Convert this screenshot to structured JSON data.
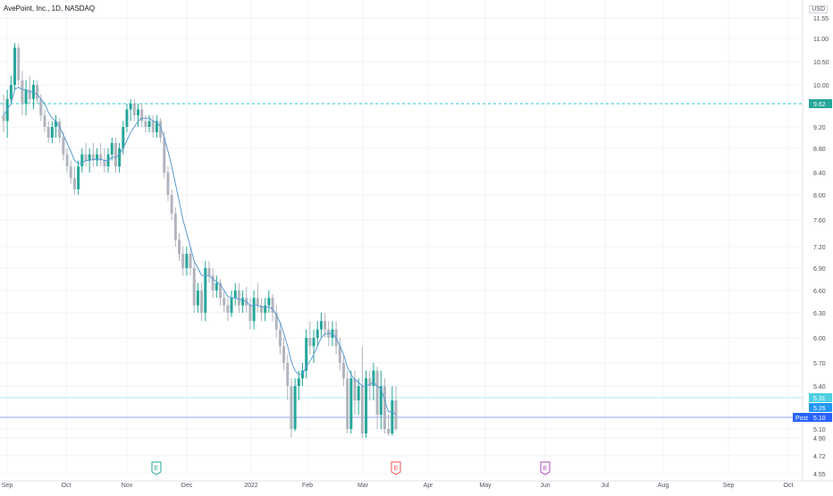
{
  "header": {
    "symbol_title": "AvePoint, Inc., 1D, NASDAQ",
    "currency": "USD"
  },
  "colors": {
    "up": "#26a69a",
    "down": "#b2b5be",
    "ma": "#5b9bd5",
    "dashed_line": "#26c6da",
    "price_tag_current": "#26a69a",
    "price_tag_close": "#2196f3",
    "post_tag": "#2962ff",
    "earnings_up": "#26a69a",
    "earnings_down": "#ef5350",
    "earnings_future": "#ab47bc"
  },
  "chart_data": {
    "type": "candlestick",
    "title": "AvePoint, Inc., 1D, NASDAQ",
    "ylabel": "USD",
    "ylim": [
      4.55,
      11.55
    ],
    "grid": true,
    "y_ticks": [
      "11.55",
      "11.00",
      "10.50",
      "10.00",
      "9.60",
      "9.20",
      "8.80",
      "8.40",
      "8.00",
      "7.60",
      "7.20",
      "6.90",
      "6.60",
      "6.30",
      "6.00",
      "5.70",
      "5.40",
      "5.10",
      "4.90",
      "4.72",
      "4.55"
    ],
    "x_ticks": [
      "Sep",
      "Oct",
      "Nov",
      "Dec",
      "2022",
      "Feb",
      "Mar",
      "Apr",
      "May",
      "Jun",
      "Jul",
      "Aug",
      "Sep",
      "Oct"
    ],
    "series": [
      {
        "type": "candlestick",
        "ohlc": [
          [
            9.4,
            9.8,
            9.1,
            9.3
          ],
          [
            9.3,
            9.9,
            9.0,
            9.7
          ],
          [
            9.7,
            10.2,
            9.6,
            10.0
          ],
          [
            10.0,
            10.9,
            9.9,
            10.8
          ],
          [
            10.8,
            10.9,
            10.0,
            10.1
          ],
          [
            10.1,
            10.3,
            9.4,
            9.6
          ],
          [
            9.6,
            10.1,
            9.4,
            9.9
          ],
          [
            9.9,
            10.2,
            9.6,
            9.7
          ],
          [
            9.7,
            10.1,
            9.5,
            10.0
          ],
          [
            10.0,
            10.1,
            9.6,
            9.7
          ],
          [
            9.7,
            9.8,
            9.3,
            9.4
          ],
          [
            9.4,
            9.5,
            9.1,
            9.2
          ],
          [
            9.2,
            9.3,
            8.9,
            9.0
          ],
          [
            9.0,
            9.3,
            8.9,
            9.2
          ],
          [
            9.2,
            9.4,
            9.0,
            9.3
          ],
          [
            9.3,
            9.35,
            8.9,
            9.0
          ],
          [
            9.0,
            9.1,
            8.6,
            8.7
          ],
          [
            8.7,
            8.8,
            8.4,
            8.5
          ],
          [
            8.5,
            8.6,
            8.2,
            8.3
          ],
          [
            8.3,
            8.5,
            8.0,
            8.1
          ],
          [
            8.1,
            8.6,
            8.0,
            8.5
          ],
          [
            8.5,
            8.8,
            8.4,
            8.7
          ],
          [
            8.7,
            8.9,
            8.5,
            8.6
          ],
          [
            8.6,
            8.8,
            8.4,
            8.7
          ],
          [
            8.7,
            8.9,
            8.5,
            8.6
          ],
          [
            8.6,
            8.8,
            8.5,
            8.7
          ],
          [
            8.7,
            8.9,
            8.5,
            8.6
          ],
          [
            8.6,
            8.8,
            8.4,
            8.5
          ],
          [
            8.5,
            8.8,
            8.4,
            8.7
          ],
          [
            8.7,
            9.0,
            8.6,
            8.9
          ],
          [
            8.9,
            9.0,
            8.4,
            8.5
          ],
          [
            8.5,
            8.9,
            8.4,
            8.8
          ],
          [
            8.8,
            9.3,
            8.7,
            9.2
          ],
          [
            9.2,
            9.6,
            9.1,
            9.5
          ],
          [
            9.5,
            9.7,
            9.3,
            9.6
          ],
          [
            9.6,
            9.7,
            9.3,
            9.4
          ],
          [
            9.4,
            9.6,
            9.2,
            9.5
          ],
          [
            9.5,
            9.6,
            9.2,
            9.3
          ],
          [
            9.3,
            9.4,
            9.1,
            9.2
          ],
          [
            9.2,
            9.4,
            9.1,
            9.3
          ],
          [
            9.3,
            9.4,
            9.0,
            9.1
          ],
          [
            9.1,
            9.4,
            9.0,
            9.3
          ],
          [
            9.3,
            9.35,
            8.9,
            9.0
          ],
          [
            9.0,
            9.1,
            8.3,
            8.4
          ],
          [
            8.4,
            8.5,
            7.9,
            8.0
          ],
          [
            8.0,
            8.1,
            7.6,
            7.7
          ],
          [
            7.7,
            7.8,
            7.2,
            7.3
          ],
          [
            7.3,
            7.4,
            7.0,
            7.1
          ],
          [
            7.1,
            7.2,
            6.8,
            6.9
          ],
          [
            6.9,
            7.2,
            6.8,
            7.1
          ],
          [
            7.1,
            7.2,
            6.8,
            6.9
          ],
          [
            6.9,
            7.0,
            6.3,
            6.4
          ],
          [
            6.4,
            6.7,
            6.3,
            6.6
          ],
          [
            6.6,
            6.7,
            6.2,
            6.3
          ],
          [
            6.3,
            7.0,
            6.2,
            6.9
          ],
          [
            6.9,
            7.0,
            6.7,
            6.8
          ],
          [
            6.8,
            6.9,
            6.5,
            6.6
          ],
          [
            6.6,
            6.8,
            6.5,
            6.7
          ],
          [
            6.7,
            6.75,
            6.4,
            6.5
          ],
          [
            6.5,
            6.6,
            6.3,
            6.4
          ],
          [
            6.4,
            6.5,
            6.2,
            6.3
          ],
          [
            6.3,
            6.6,
            6.25,
            6.5
          ],
          [
            6.5,
            6.7,
            6.4,
            6.6
          ],
          [
            6.6,
            6.7,
            6.3,
            6.4
          ],
          [
            6.4,
            6.6,
            6.3,
            6.5
          ],
          [
            6.5,
            6.65,
            6.3,
            6.4
          ],
          [
            6.4,
            6.5,
            6.1,
            6.2
          ],
          [
            6.2,
            6.6,
            6.1,
            6.5
          ],
          [
            6.5,
            6.7,
            6.3,
            6.4
          ],
          [
            6.4,
            6.5,
            6.2,
            6.3
          ],
          [
            6.3,
            6.5,
            6.2,
            6.4
          ],
          [
            6.4,
            6.6,
            6.3,
            6.5
          ],
          [
            6.5,
            6.55,
            6.2,
            6.3
          ],
          [
            6.3,
            6.4,
            6.0,
            6.1
          ],
          [
            6.1,
            6.2,
            5.8,
            5.9
          ],
          [
            5.9,
            6.0,
            5.6,
            5.7
          ],
          [
            5.7,
            5.8,
            5.3,
            5.4
          ],
          [
            5.4,
            5.5,
            4.9,
            5.1
          ],
          [
            5.1,
            5.5,
            5.05,
            5.4
          ],
          [
            5.4,
            5.6,
            5.3,
            5.5
          ],
          [
            5.5,
            5.7,
            5.4,
            5.6
          ],
          [
            5.6,
            6.1,
            5.5,
            6.0
          ],
          [
            6.0,
            6.2,
            5.8,
            5.9
          ],
          [
            5.9,
            6.1,
            5.7,
            6.0
          ],
          [
            6.0,
            6.2,
            5.9,
            6.1
          ],
          [
            6.1,
            6.3,
            6.0,
            6.2
          ],
          [
            6.2,
            6.3,
            6.0,
            6.1
          ],
          [
            6.1,
            6.2,
            5.9,
            6.0
          ],
          [
            6.0,
            6.2,
            5.9,
            6.1
          ],
          [
            6.1,
            6.2,
            5.8,
            5.9
          ],
          [
            5.9,
            6.0,
            5.6,
            5.7
          ],
          [
            5.7,
            5.8,
            5.4,
            5.5
          ],
          [
            5.5,
            5.6,
            5.0,
            5.1
          ],
          [
            5.1,
            5.6,
            5.0,
            5.5
          ],
          [
            5.5,
            5.6,
            5.2,
            5.3
          ],
          [
            5.3,
            5.5,
            5.2,
            5.4
          ],
          [
            5.4,
            5.9,
            4.9,
            5.0
          ],
          [
            5.0,
            5.6,
            4.9,
            5.5
          ],
          [
            5.5,
            5.6,
            5.3,
            5.4
          ],
          [
            5.4,
            5.7,
            5.3,
            5.6
          ],
          [
            5.6,
            5.65,
            5.1,
            5.2
          ],
          [
            5.2,
            5.6,
            5.1,
            5.4
          ],
          [
            5.4,
            5.5,
            5.0,
            5.1
          ],
          [
            5.1,
            5.2,
            4.95,
            5.0
          ],
          [
            5.0,
            5.4,
            4.95,
            5.3
          ],
          [
            5.3,
            5.4,
            5.05,
            5.1
          ]
        ]
      },
      {
        "name": "",
        "type": "line",
        "values": [
          9.4,
          9.5,
          9.6,
          9.9,
          9.95,
          9.9,
          9.9,
          9.85,
          9.85,
          9.8,
          9.7,
          9.6,
          9.45,
          9.35,
          9.3,
          9.2,
          9.05,
          8.9,
          8.75,
          8.6,
          8.55,
          8.55,
          8.6,
          8.6,
          8.62,
          8.62,
          8.62,
          8.6,
          8.6,
          8.65,
          8.65,
          8.7,
          8.8,
          8.95,
          9.1,
          9.2,
          9.3,
          9.35,
          9.35,
          9.35,
          9.3,
          9.28,
          9.2,
          9.0,
          8.75,
          8.5,
          8.2,
          7.9,
          7.6,
          7.4,
          7.2,
          7.0,
          6.9,
          6.8,
          6.8,
          6.8,
          6.75,
          6.72,
          6.68,
          6.6,
          6.52,
          6.5,
          6.5,
          6.48,
          6.47,
          6.45,
          6.4,
          6.4,
          6.4,
          6.38,
          6.37,
          6.38,
          6.35,
          6.28,
          6.18,
          6.05,
          5.9,
          5.72,
          5.6,
          5.55,
          5.55,
          5.65,
          5.72,
          5.8,
          5.9,
          6.0,
          6.05,
          6.05,
          6.05,
          6.0,
          5.9,
          5.8,
          5.65,
          5.55,
          5.48,
          5.45,
          5.4,
          5.4,
          5.42,
          5.45,
          5.4,
          5.38,
          5.3,
          5.22,
          5.22,
          5.2
        ]
      }
    ],
    "horizontal_line": 9.6,
    "price_tags": {
      "dashed": "9.62",
      "upper": "5.31",
      "last": "5.26",
      "post_label": "Post",
      "post_value": "5.10"
    },
    "earnings_markers": [
      {
        "label": "E",
        "month": "Nov",
        "kind": "up"
      },
      {
        "label": "E",
        "month": "Mar",
        "kind": "down"
      },
      {
        "label": "E",
        "month": "Jun",
        "kind": "future"
      }
    ]
  }
}
